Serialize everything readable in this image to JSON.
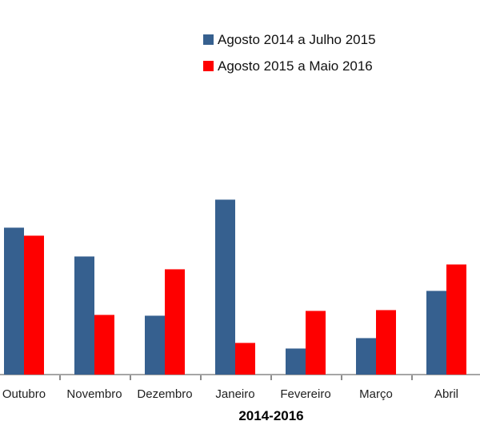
{
  "chart_data": {
    "type": "bar",
    "title": "",
    "xlabel": "2014-2016",
    "ylabel": "",
    "categories": [
      "Outubro",
      "Novembro",
      "Dezembro",
      "Janeiro",
      "Fevereiro",
      "Março",
      "Abril"
    ],
    "series": [
      {
        "name": "Agosto 2014 a Julho 2015",
        "color": "#36608F",
        "values": [
          184,
          148,
          74,
          219,
          33,
          46,
          105
        ]
      },
      {
        "name": "Agosto 2015 a Maio 2016",
        "color": "#FE0000",
        "values": [
          174,
          75,
          132,
          40,
          80,
          81,
          138
        ]
      }
    ],
    "value_units": "relative (no y-axis labels or gridlines visible; values are bar heights in screen pixels)",
    "ylim": [
      0,
      468
    ],
    "gridlines": false,
    "y_axis_visible": false,
    "legend_position": "top-center"
  },
  "colors": {
    "axis_line": "#A6A6A6",
    "tick": "#8C8C8C",
    "label_text": "#1F1F1F",
    "title_text": "#000000"
  }
}
